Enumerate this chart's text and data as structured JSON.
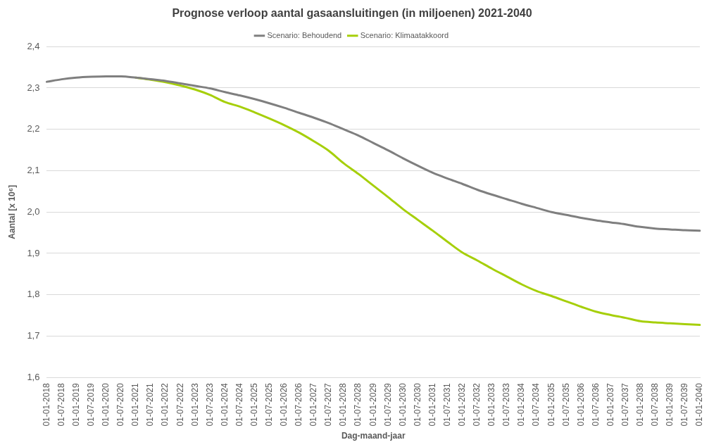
{
  "chart_data": {
    "type": "line",
    "title": "Prognose verloop aantal gasaansluitingen (in miljoenen) 2021-2040",
    "xlabel": "Dag-maand-jaar",
    "ylabel": "Aantal [x 10⁶]",
    "categories": [
      "01-01-2018",
      "01-07-2018",
      "01-01-2019",
      "01-07-2019",
      "01-01-2020",
      "01-07-2020",
      "01-01-2021",
      "01-07-2021",
      "01-01-2022",
      "01-07-2022",
      "01-01-2023",
      "01-07-2023",
      "01-01-2024",
      "01-07-2024",
      "01-01-2025",
      "01-07-2025",
      "01-01-2026",
      "01-07-2026",
      "01-01-2027",
      "01-07-2027",
      "01-01-2028",
      "01-07-2028",
      "01-01-2029",
      "01-07-2029",
      "01-01-2030",
      "01-07-2030",
      "01-01-2031",
      "01-07-2031",
      "01-01-2032",
      "01-07-2032",
      "01-01-2033",
      "01-07-2033",
      "01-01-2034",
      "01-07-2034",
      "01-01-2035",
      "01-07-2035",
      "01-01-2036",
      "01-07-2036",
      "01-01-2037",
      "01-07-2037",
      "01-01-2038",
      "01-07-2038",
      "01-01-2039",
      "01-07-2039",
      "01-01-2040"
    ],
    "series": [
      {
        "name": "Scenario: Klimaatakkoord",
        "color": "#a6cf0a",
        "values": [
          null,
          null,
          null,
          null,
          null,
          null,
          2.325,
          2.32,
          2.314,
          2.306,
          2.296,
          2.283,
          2.266,
          2.255,
          2.241,
          2.226,
          2.21,
          2.192,
          2.171,
          2.148,
          2.118,
          2.092,
          2.064,
          2.036,
          2.007,
          1.981,
          1.955,
          1.928,
          1.902,
          1.883,
          1.863,
          1.844,
          1.825,
          1.809,
          1.797,
          1.784,
          1.771,
          1.759,
          1.751,
          1.744,
          1.736,
          1.733,
          1.731,
          1.729,
          1.727
        ]
      },
      {
        "name": "Scenario: Behoudend",
        "color": "#7f7f7f",
        "values": [
          2.315,
          2.321,
          2.325,
          2.327,
          2.328,
          2.328,
          2.325,
          2.321,
          2.317,
          2.311,
          2.305,
          2.299,
          2.29,
          2.282,
          2.273,
          2.263,
          2.252,
          2.24,
          2.228,
          2.215,
          2.2,
          2.185,
          2.167,
          2.149,
          2.13,
          2.112,
          2.095,
          2.081,
          2.068,
          2.054,
          2.042,
          2.031,
          2.02,
          2.01,
          2.0,
          1.993,
          1.986,
          1.98,
          1.975,
          1.97,
          1.964,
          1.96,
          1.958,
          1.956,
          1.955
        ]
      }
    ],
    "ylim": [
      1.6,
      2.4
    ],
    "yticks": [
      {
        "value": 1.6,
        "label": "1,6"
      },
      {
        "value": 1.7,
        "label": "1,7"
      },
      {
        "value": 1.8,
        "label": "1,8"
      },
      {
        "value": 1.9,
        "label": "1,9"
      },
      {
        "value": 2.0,
        "label": "2,0"
      },
      {
        "value": 2.1,
        "label": "2,1"
      },
      {
        "value": 2.2,
        "label": "2,2"
      },
      {
        "value": 2.3,
        "label": "2,3"
      },
      {
        "value": 2.4,
        "label": "2,4"
      }
    ],
    "grid": "y",
    "legend": "top",
    "marker": "none",
    "line_style": "solid"
  }
}
